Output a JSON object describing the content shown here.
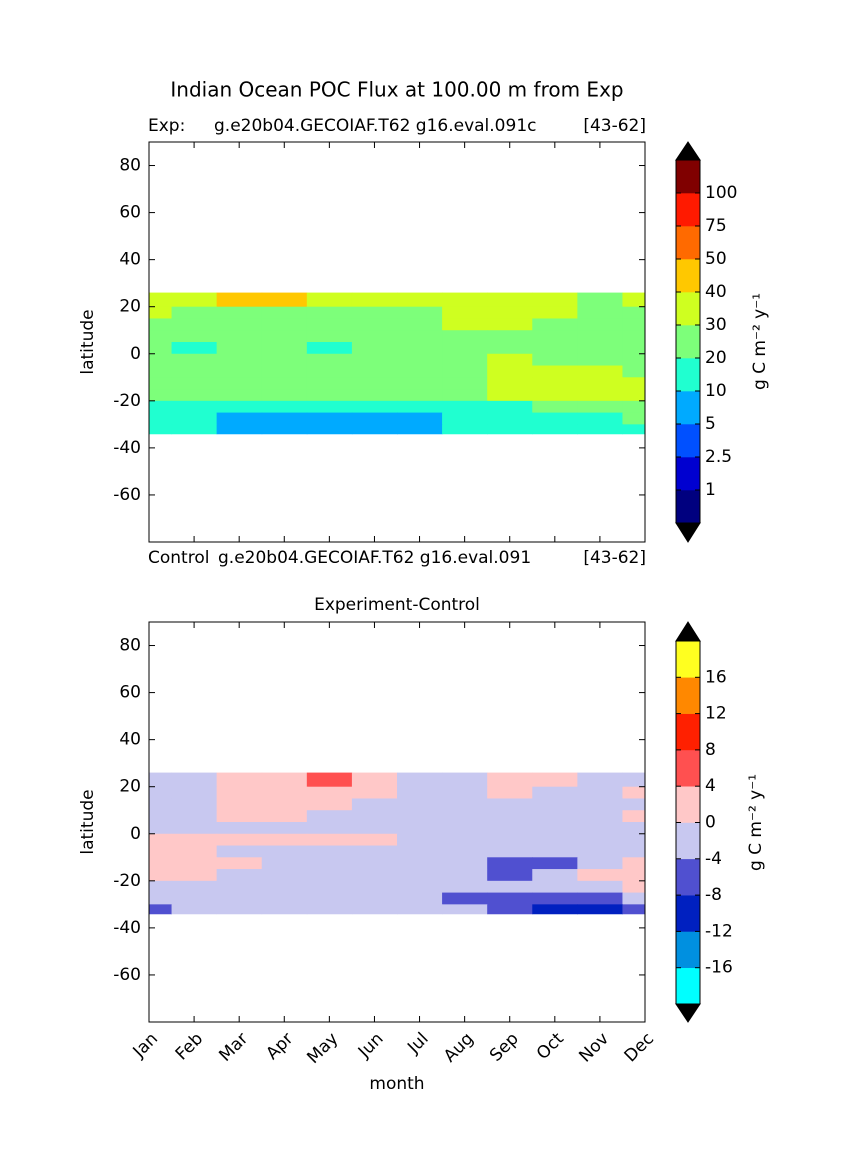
{
  "chart_data": [
    {
      "type": "contour",
      "title": "Indian Ocean POC Flux at 100.00 m from Exp",
      "annotations": [
        "Exp:",
        "g.e20b04.GECOIAF.T62 g16.eval.091c",
        "[43-62]"
      ],
      "ylabel": "latitude",
      "ylim": [
        -80,
        90
      ],
      "yticks": [
        80,
        60,
        40,
        20,
        0,
        -20,
        -40,
        -60
      ],
      "y_edges": [
        26,
        20,
        15,
        10,
        5,
        0,
        -5,
        -10,
        -15,
        -20,
        -25,
        -30,
        -34
      ],
      "z": [
        [
          35,
          35,
          42,
          45,
          38,
          35,
          33,
          35,
          35,
          33,
          28,
          33
        ],
        [
          35,
          25,
          25,
          25,
          25,
          25,
          28,
          33,
          35,
          33,
          25,
          25
        ],
        [
          25,
          25,
          25,
          25,
          25,
          25,
          25,
          33,
          35,
          25,
          25,
          25
        ],
        [
          25,
          25,
          25,
          25,
          25,
          25,
          25,
          25,
          25,
          25,
          25,
          25
        ],
        [
          25,
          15,
          25,
          25,
          15,
          25,
          25,
          25,
          25,
          25,
          25,
          25
        ],
        [
          25,
          25,
          25,
          25,
          25,
          25,
          25,
          25,
          33,
          25,
          25,
          25
        ],
        [
          25,
          25,
          25,
          25,
          25,
          25,
          25,
          25,
          35,
          35,
          35,
          28
        ],
        [
          25,
          25,
          25,
          25,
          25,
          25,
          25,
          25,
          35,
          35,
          35,
          35
        ],
        [
          22,
          25,
          25,
          25,
          25,
          25,
          25,
          25,
          35,
          35,
          35,
          35
        ],
        [
          15,
          15,
          15,
          15,
          15,
          15,
          15,
          15,
          18,
          25,
          25,
          25
        ],
        [
          15,
          15,
          8,
          8,
          8,
          8,
          8,
          15,
          15,
          15,
          15,
          25
        ],
        [
          15,
          15,
          8,
          8,
          8,
          8,
          8,
          15,
          15,
          15,
          15,
          15
        ]
      ],
      "levels": [
        1,
        2.5,
        5,
        10,
        20,
        30,
        40,
        50,
        75,
        100
      ],
      "colors": [
        "#00007f",
        "#0000d0",
        "#0050ff",
        "#00aaff",
        "#20ffd0",
        "#7dff7a",
        "#cfff20",
        "#ffc800",
        "#ff6a00",
        "#ff1a00",
        "#800000"
      ],
      "over_color": "#000000",
      "under_color": "#000000",
      "colorbar_label": "g C m⁻² y⁻¹"
    },
    {
      "type": "contour",
      "title": "Experiment-Control",
      "annotations": [
        "Control",
        "g.e20b04.GECOIAF.T62 g16.eval.091",
        "[43-62]"
      ],
      "xlabel": "month",
      "ylabel": "latitude",
      "categories": [
        "Jan",
        "Feb",
        "Mar",
        "Apr",
        "May",
        "Jun",
        "Jul",
        "Aug",
        "Sep",
        "Oct",
        "Nov",
        "Dec"
      ],
      "ylim": [
        -80,
        90
      ],
      "yticks": [
        80,
        60,
        40,
        20,
        0,
        -20,
        -40,
        -60
      ],
      "y_edges": [
        26,
        20,
        15,
        10,
        5,
        0,
        -5,
        -10,
        -15,
        -20,
        -25,
        -30,
        -34
      ],
      "z": [
        [
          -2,
          -2,
          2,
          2,
          5,
          2,
          -2,
          -2,
          2,
          2,
          -2,
          -2
        ],
        [
          -2,
          -2,
          2,
          2,
          2,
          2,
          -2,
          -2,
          2,
          -2,
          -2,
          2
        ],
        [
          -2,
          -2,
          2,
          2,
          2,
          -2,
          -2,
          -2,
          -2,
          -2,
          -2,
          -2
        ],
        [
          -2,
          -2,
          2,
          2,
          -2,
          -2,
          -2,
          -2,
          -2,
          -2,
          -2,
          2
        ],
        [
          -2,
          -2,
          -2,
          -2,
          -2,
          -2,
          -2,
          -2,
          -2,
          -2,
          -2,
          -2
        ],
        [
          2,
          2,
          2,
          2,
          2,
          2,
          -2,
          -2,
          -2,
          -2,
          -2,
          -2
        ],
        [
          2,
          2,
          -2,
          -2,
          -2,
          -2,
          -2,
          -2,
          -2,
          -2,
          -2,
          -2
        ],
        [
          2,
          2,
          2,
          -2,
          -2,
          -2,
          -2,
          -2,
          -6,
          -6,
          -2,
          2
        ],
        [
          2,
          2,
          -2,
          -2,
          -2,
          -2,
          -2,
          -2,
          -6,
          -2,
          2,
          2
        ],
        [
          -2,
          -2,
          -2,
          -2,
          -2,
          -2,
          -2,
          -2,
          -2,
          -2,
          -2,
          2
        ],
        [
          -2,
          -2,
          -2,
          -2,
          -2,
          -2,
          -2,
          -6,
          -6,
          -6,
          -6,
          -2
        ],
        [
          -6,
          -2,
          -2,
          -2,
          -2,
          -2,
          -2,
          -2,
          -6,
          -10,
          -10,
          -6
        ]
      ],
      "levels": [
        -16,
        -12,
        -8,
        -4,
        0,
        4,
        8,
        12,
        16
      ],
      "colors": [
        "#00ffff",
        "#0090e0",
        "#0020c0",
        "#5050d0",
        "#c8c8f0",
        "#ffc8c8",
        "#ff5050",
        "#ff2000",
        "#ff8800",
        "#ffff20"
      ],
      "over_color": "#000000",
      "under_color": "#000000",
      "colorbar_label": "g C m⁻² y⁻¹"
    }
  ]
}
